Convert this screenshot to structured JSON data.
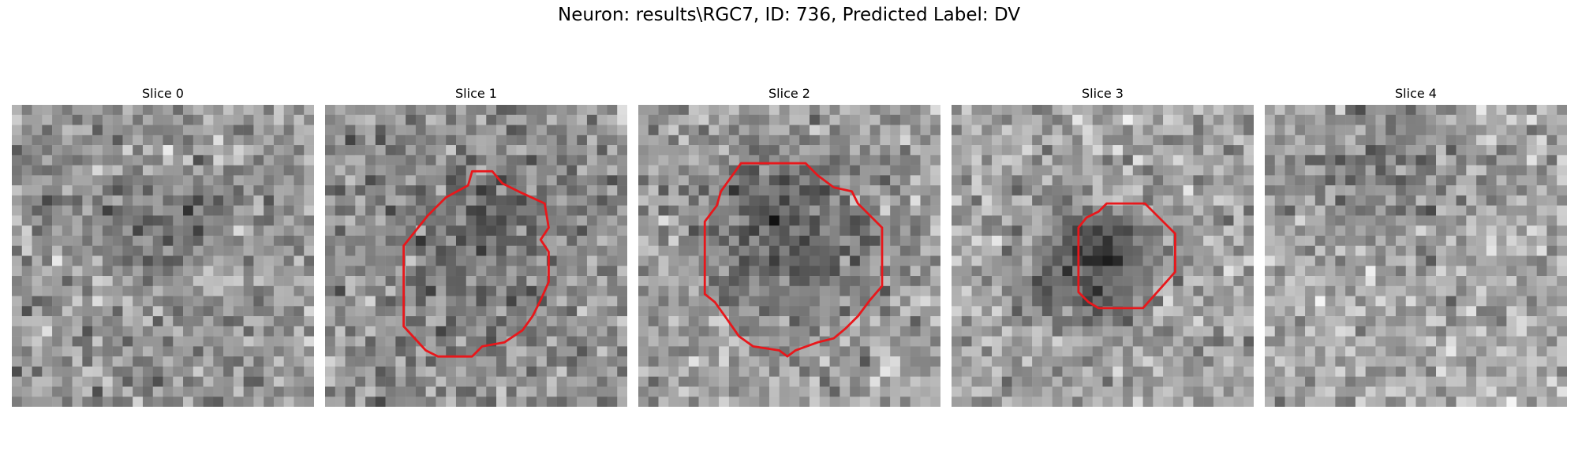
{
  "figure": {
    "title": "Neuron: results\\RGC7, ID: 736, Predicted Label: DV",
    "contour_color": "#e8171b"
  },
  "slices": [
    {
      "title": "Slice 0",
      "has_contour": false
    },
    {
      "title": "Slice 1",
      "has_contour": true
    },
    {
      "title": "Slice 2",
      "has_contour": true
    },
    {
      "title": "Slice 3",
      "has_contour": true
    },
    {
      "title": "Slice 4",
      "has_contour": false
    }
  ]
}
